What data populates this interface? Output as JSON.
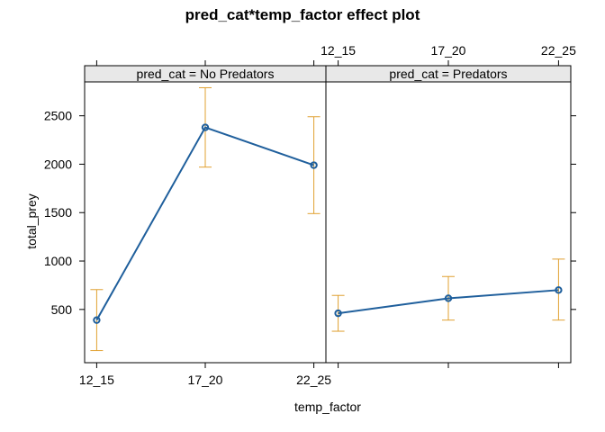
{
  "chart_data": {
    "type": "line",
    "title": "pred_cat*temp_factor effect plot",
    "xlabel": "temp_factor",
    "ylabel": "total_prey",
    "categories": [
      "12_15",
      "17_20",
      "22_25"
    ],
    "ylim": [
      -50,
      2850
    ],
    "yticks": [
      500,
      1000,
      1500,
      2000,
      2500
    ],
    "grid": false,
    "colors": {
      "line": "#1f5f9c",
      "error_bar": "#e0a030",
      "strip": "#e8e8e8"
    },
    "panels": [
      {
        "strip_label": "pred_cat = No Predators",
        "values": [
          390,
          2380,
          1990
        ],
        "lower": [
          75,
          1970,
          1490
        ],
        "upper": [
          705,
          2790,
          2490
        ]
      },
      {
        "strip_label": "pred_cat = Predators",
        "values": [
          460,
          615,
          700
        ],
        "lower": [
          275,
          390,
          390
        ],
        "upper": [
          645,
          840,
          1020
        ]
      }
    ]
  }
}
